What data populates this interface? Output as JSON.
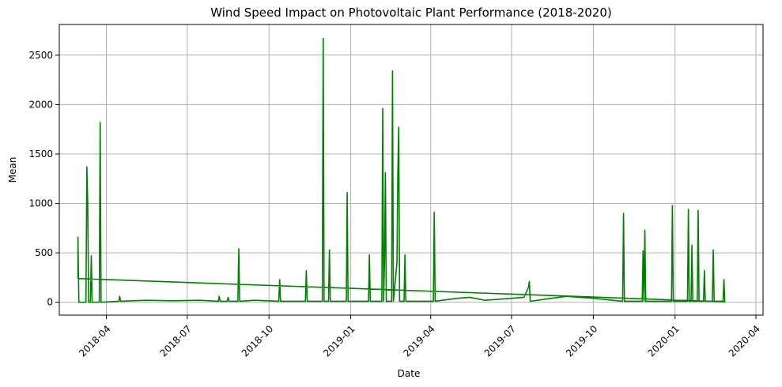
{
  "chart_data": {
    "type": "line",
    "title": "Wind Speed Impact on Photovoltaic Plant Performance (2018-2020)",
    "xlabel": "Date",
    "ylabel": "Mean",
    "grid": true,
    "xlim": [
      "2018-02-07",
      "2020-04-09"
    ],
    "ylim": [
      -130,
      2810
    ],
    "x_ticks": [
      "2018-04",
      "2018-07",
      "2018-10",
      "2019-01",
      "2019-04",
      "2019-07",
      "2019-10",
      "2020-01",
      "2020-04"
    ],
    "y_ticks": [
      0,
      500,
      1000,
      1500,
      2000,
      2500
    ],
    "series": [
      {
        "color": "#008000",
        "points": [
          [
            "2018-02-28",
            240
          ],
          [
            "2018-02-28",
            660
          ],
          [
            "2018-03-01",
            0
          ],
          [
            "2018-03-09",
            0
          ],
          [
            "2018-03-10",
            1370
          ],
          [
            "2018-03-11",
            1000
          ],
          [
            "2018-03-12",
            0
          ],
          [
            "2018-03-14",
            0
          ],
          [
            "2018-03-15",
            470
          ],
          [
            "2018-03-16",
            0
          ],
          [
            "2018-03-24",
            0
          ],
          [
            "2018-03-25",
            1820
          ],
          [
            "2018-03-26",
            0
          ],
          [
            "2018-04-15",
            10
          ],
          [
            "2018-04-16",
            60
          ],
          [
            "2018-04-17",
            10
          ],
          [
            "2018-05-15",
            20
          ],
          [
            "2018-06-15",
            15
          ],
          [
            "2018-07-15",
            20
          ],
          [
            "2018-08-05",
            10
          ],
          [
            "2018-08-06",
            60
          ],
          [
            "2018-08-07",
            10
          ],
          [
            "2018-08-15",
            10
          ],
          [
            "2018-08-16",
            50
          ],
          [
            "2018-08-17",
            10
          ],
          [
            "2018-08-27",
            10
          ],
          [
            "2018-08-28",
            540
          ],
          [
            "2018-08-29",
            10
          ],
          [
            "2018-09-15",
            20
          ],
          [
            "2018-10-12",
            10
          ],
          [
            "2018-10-13",
            230
          ],
          [
            "2018-10-14",
            10
          ],
          [
            "2018-11-11",
            10
          ],
          [
            "2018-11-12",
            320
          ],
          [
            "2018-11-13",
            10
          ],
          [
            "2018-11-30",
            10
          ],
          [
            "2018-12-01",
            2670
          ],
          [
            "2018-12-02",
            10
          ],
          [
            "2018-12-07",
            10
          ],
          [
            "2018-12-08",
            530
          ],
          [
            "2018-12-09",
            10
          ],
          [
            "2018-12-27",
            10
          ],
          [
            "2018-12-28",
            1110
          ],
          [
            "2018-12-29",
            10
          ],
          [
            "2019-01-21",
            10
          ],
          [
            "2019-01-22",
            480
          ],
          [
            "2019-01-23",
            10
          ],
          [
            "2019-02-05",
            10
          ],
          [
            "2019-02-06",
            1960
          ],
          [
            "2019-02-07",
            10
          ],
          [
            "2019-02-08",
            400
          ],
          [
            "2019-02-09",
            1310
          ],
          [
            "2019-02-10",
            10
          ],
          [
            "2019-02-16",
            10
          ],
          [
            "2019-02-17",
            2340
          ],
          [
            "2019-02-18",
            10
          ],
          [
            "2019-02-22",
            400
          ],
          [
            "2019-02-23",
            1300
          ],
          [
            "2019-02-24",
            1770
          ],
          [
            "2019-02-25",
            10
          ],
          [
            "2019-03-02",
            10
          ],
          [
            "2019-03-03",
            480
          ],
          [
            "2019-03-04",
            10
          ],
          [
            "2019-04-04",
            10
          ],
          [
            "2019-04-05",
            910
          ],
          [
            "2019-04-06",
            10
          ],
          [
            "2019-05-01",
            40
          ],
          [
            "2019-05-15",
            50
          ],
          [
            "2019-06-01",
            20
          ],
          [
            "2019-07-01",
            40
          ],
          [
            "2019-07-15",
            50
          ],
          [
            "2019-07-20",
            150
          ],
          [
            "2019-07-21",
            210
          ],
          [
            "2019-07-22",
            10
          ],
          [
            "2019-08-15",
            40
          ],
          [
            "2019-09-01",
            60
          ],
          [
            "2019-09-15",
            50
          ],
          [
            "2019-10-01",
            40
          ],
          [
            "2019-11-03",
            10
          ],
          [
            "2019-11-04",
            900
          ],
          [
            "2019-11-05",
            10
          ],
          [
            "2019-11-25",
            10
          ],
          [
            "2019-11-26",
            520
          ],
          [
            "2019-11-27",
            10
          ],
          [
            "2019-11-28",
            730
          ],
          [
            "2019-11-29",
            10
          ],
          [
            "2019-12-28",
            10
          ],
          [
            "2019-12-29",
            980
          ],
          [
            "2019-12-30",
            10
          ],
          [
            "2020-01-15",
            10
          ],
          [
            "2020-01-16",
            940
          ],
          [
            "2020-01-17",
            10
          ],
          [
            "2020-01-19",
            10
          ],
          [
            "2020-01-20",
            580
          ],
          [
            "2020-01-21",
            10
          ],
          [
            "2020-01-26",
            10
          ],
          [
            "2020-01-27",
            930
          ],
          [
            "2020-01-28",
            10
          ],
          [
            "2020-02-02",
            10
          ],
          [
            "2020-02-03",
            320
          ],
          [
            "2020-02-04",
            10
          ],
          [
            "2020-02-12",
            10
          ],
          [
            "2020-02-13",
            530
          ],
          [
            "2020-02-14",
            10
          ],
          [
            "2020-02-24",
            10
          ],
          [
            "2020-02-25",
            230
          ],
          [
            "2020-02-26",
            5
          ],
          [
            "2018-02-28",
            240
          ]
        ]
      }
    ]
  }
}
